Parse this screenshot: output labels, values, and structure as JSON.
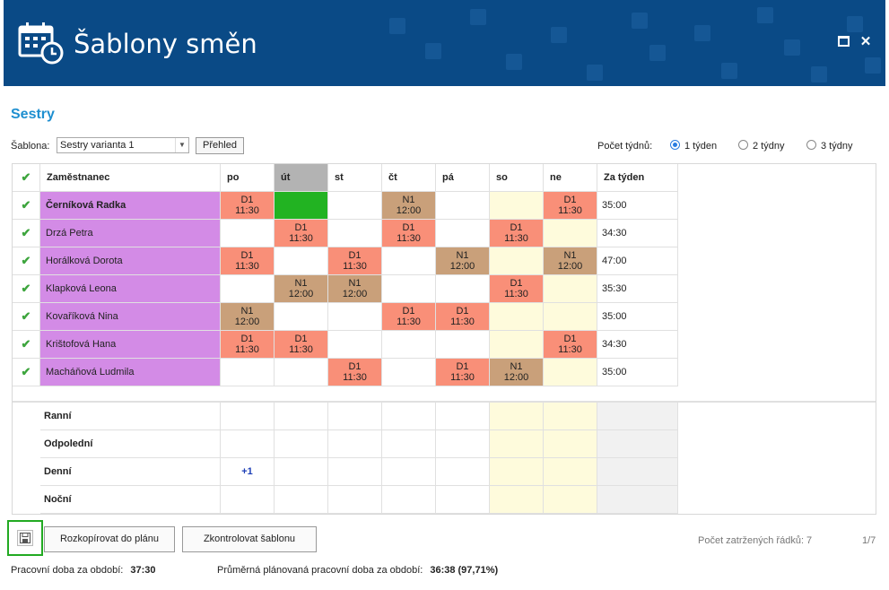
{
  "window": {
    "title": "Šablony směn",
    "maximize_icon": "maximize-icon",
    "close_icon": "close-icon"
  },
  "section_title": "Sestry",
  "sablona": {
    "label": "Šablona:",
    "value": "Sestry varianta 1",
    "overview_button": "Přehled"
  },
  "weeks": {
    "label": "Počet týdnů:",
    "options": [
      {
        "label": "1 týden",
        "selected": true
      },
      {
        "label": "2 týdny",
        "selected": false
      },
      {
        "label": "3 týdny",
        "selected": false
      }
    ]
  },
  "table": {
    "headers": [
      "Zaměstnanec",
      "po",
      "út",
      "st",
      "čt",
      "pá",
      "so",
      "ne",
      "Za týden"
    ],
    "highlighted_day": "út",
    "rows": [
      {
        "name": "Černíková Radka",
        "bold": true,
        "days": [
          {
            "t": "D",
            "c": "D1",
            "h": "11:30"
          },
          {
            "t": "G",
            "c": "",
            "h": ""
          },
          {
            "t": "",
            "c": "",
            "h": ""
          },
          {
            "t": "N",
            "c": "N1",
            "h": "12:00"
          },
          {
            "t": "",
            "c": "",
            "h": ""
          },
          {
            "t": "W",
            "c": "",
            "h": ""
          },
          {
            "t": "D",
            "c": "D1",
            "h": "11:30"
          }
        ],
        "total": "35:00"
      },
      {
        "name": "Drzá Petra",
        "bold": false,
        "days": [
          {
            "t": "",
            "c": "",
            "h": ""
          },
          {
            "t": "D",
            "c": "D1",
            "h": "11:30"
          },
          {
            "t": "",
            "c": "",
            "h": ""
          },
          {
            "t": "D",
            "c": "D1",
            "h": "11:30"
          },
          {
            "t": "",
            "c": "",
            "h": ""
          },
          {
            "t": "D",
            "c": "D1",
            "h": "11:30"
          },
          {
            "t": "W",
            "c": "",
            "h": ""
          }
        ],
        "total": "34:30"
      },
      {
        "name": "Horálková Dorota",
        "bold": false,
        "days": [
          {
            "t": "D",
            "c": "D1",
            "h": "11:30"
          },
          {
            "t": "",
            "c": "",
            "h": ""
          },
          {
            "t": "D",
            "c": "D1",
            "h": "11:30"
          },
          {
            "t": "",
            "c": "",
            "h": ""
          },
          {
            "t": "N",
            "c": "N1",
            "h": "12:00"
          },
          {
            "t": "W",
            "c": "",
            "h": ""
          },
          {
            "t": "N",
            "c": "N1",
            "h": "12:00"
          }
        ],
        "total": "47:00"
      },
      {
        "name": "Klapková Leona",
        "bold": false,
        "days": [
          {
            "t": "",
            "c": "",
            "h": ""
          },
          {
            "t": "N",
            "c": "N1",
            "h": "12:00"
          },
          {
            "t": "N",
            "c": "N1",
            "h": "12:00"
          },
          {
            "t": "",
            "c": "",
            "h": ""
          },
          {
            "t": "",
            "c": "",
            "h": ""
          },
          {
            "t": "D",
            "c": "D1",
            "h": "11:30"
          },
          {
            "t": "W",
            "c": "",
            "h": ""
          }
        ],
        "total": "35:30"
      },
      {
        "name": "Kovaříková Nina",
        "bold": false,
        "days": [
          {
            "t": "N",
            "c": "N1",
            "h": "12:00"
          },
          {
            "t": "",
            "c": "",
            "h": ""
          },
          {
            "t": "",
            "c": "",
            "h": ""
          },
          {
            "t": "D",
            "c": "D1",
            "h": "11:30"
          },
          {
            "t": "D",
            "c": "D1",
            "h": "11:30"
          },
          {
            "t": "W",
            "c": "",
            "h": ""
          },
          {
            "t": "W",
            "c": "",
            "h": ""
          }
        ],
        "total": "35:00"
      },
      {
        "name": "Krištofová Hana",
        "bold": false,
        "days": [
          {
            "t": "D",
            "c": "D1",
            "h": "11:30"
          },
          {
            "t": "D",
            "c": "D1",
            "h": "11:30"
          },
          {
            "t": "",
            "c": "",
            "h": ""
          },
          {
            "t": "",
            "c": "",
            "h": ""
          },
          {
            "t": "",
            "c": "",
            "h": ""
          },
          {
            "t": "W",
            "c": "",
            "h": ""
          },
          {
            "t": "D",
            "c": "D1",
            "h": "11:30"
          }
        ],
        "total": "34:30"
      },
      {
        "name": "Macháňová Ludmila",
        "bold": false,
        "days": [
          {
            "t": "",
            "c": "",
            "h": ""
          },
          {
            "t": "",
            "c": "",
            "h": ""
          },
          {
            "t": "D",
            "c": "D1",
            "h": "11:30"
          },
          {
            "t": "",
            "c": "",
            "h": ""
          },
          {
            "t": "D",
            "c": "D1",
            "h": "11:30"
          },
          {
            "t": "N",
            "c": "N1",
            "h": "12:00"
          },
          {
            "t": "W",
            "c": "",
            "h": ""
          }
        ],
        "total": "35:00"
      }
    ],
    "summary": [
      {
        "label": "Ranní",
        "values": [
          "",
          "",
          "",
          "",
          "",
          "",
          ""
        ]
      },
      {
        "label": "Odpolední",
        "values": [
          "",
          "",
          "",
          "",
          "",
          "",
          ""
        ]
      },
      {
        "label": "Denní",
        "values": [
          "+1",
          "",
          "",
          "",
          "",
          "",
          ""
        ]
      },
      {
        "label": "Noční",
        "values": [
          "",
          "",
          "",
          "",
          "",
          "",
          ""
        ]
      }
    ]
  },
  "buttons": {
    "save_icon": "save-icon",
    "copy": "Rozkopírovat do plánu",
    "check": "Zkontrolovat šablonu"
  },
  "status": {
    "rows_label": "Počet zatržených řádků: 7",
    "page": "1/7"
  },
  "footer": {
    "work_label": "Pracovní doba za období:",
    "work_value": "37:30",
    "avg_label": "Průměrná plánovaná pracovní doba za období:",
    "avg_value": "36:38 (97,71%)"
  },
  "colors": {
    "title_bar": "#0a4a86",
    "section_title": "#1e8fd0",
    "employee": "#d38be6",
    "day_shift": "#f98f78",
    "night_shift": "#c9a07a",
    "weekend": "#fefbdc",
    "selected_green": "#22b322"
  }
}
